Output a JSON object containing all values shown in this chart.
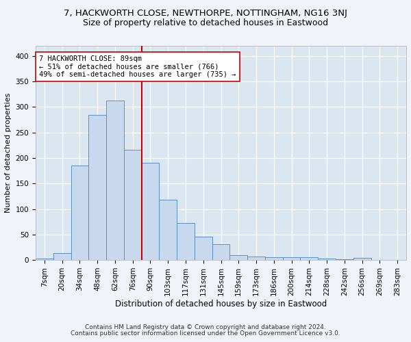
{
  "title": "7, HACKWORTH CLOSE, NEWTHORPE, NOTTINGHAM, NG16 3NJ",
  "subtitle": "Size of property relative to detached houses in Eastwood",
  "xlabel": "Distribution of detached houses by size in Eastwood",
  "ylabel": "Number of detached properties",
  "bar_color": "#c8d9ed",
  "bar_edge_color": "#5b8fc4",
  "background_color": "#dce6f0",
  "grid_color": "#ffffff",
  "fig_background": "#f0f4f8",
  "categories": [
    "7sqm",
    "20sqm",
    "34sqm",
    "48sqm",
    "62sqm",
    "76sqm",
    "90sqm",
    "103sqm",
    "117sqm",
    "131sqm",
    "145sqm",
    "159sqm",
    "173sqm",
    "186sqm",
    "200sqm",
    "214sqm",
    "228sqm",
    "242sqm",
    "256sqm",
    "269sqm",
    "283sqm"
  ],
  "values": [
    3,
    14,
    185,
    284,
    313,
    216,
    190,
    118,
    72,
    46,
    31,
    10,
    7,
    6,
    5,
    5,
    3,
    2,
    4,
    0,
    0
  ],
  "ylim": [
    0,
    420
  ],
  "yticks": [
    0,
    50,
    100,
    150,
    200,
    250,
    300,
    350,
    400
  ],
  "property_label": "7 HACKWORTH CLOSE: 89sqm",
  "annotation_line1": "← 51% of detached houses are smaller (766)",
  "annotation_line2": "49% of semi-detached houses are larger (735) →",
  "vline_color": "#cc0000",
  "annotation_box_edge": "#cc0000",
  "footer_line1": "Contains HM Land Registry data © Crown copyright and database right 2024.",
  "footer_line2": "Contains public sector information licensed under the Open Government Licence v3.0.",
  "title_fontsize": 9.5,
  "subtitle_fontsize": 9,
  "xlabel_fontsize": 8.5,
  "ylabel_fontsize": 8,
  "tick_fontsize": 7.5,
  "annotation_fontsize": 7.5,
  "footer_fontsize": 6.5,
  "vline_index": 5.5
}
